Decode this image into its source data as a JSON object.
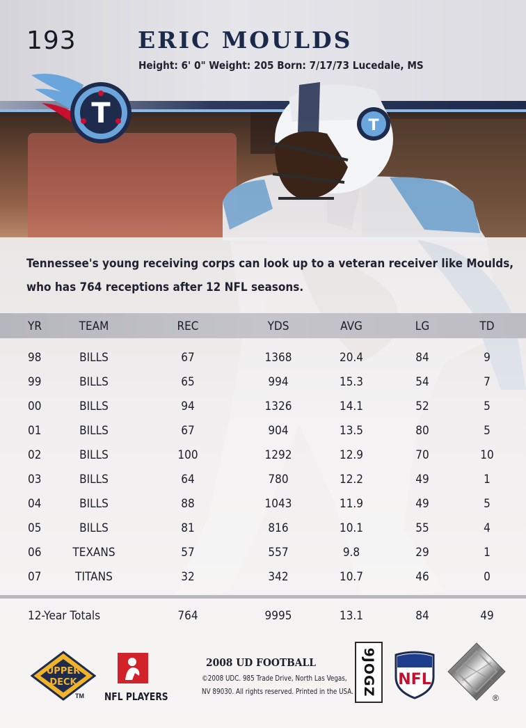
{
  "card": {
    "number": "193",
    "player_name": "ERIC MOULDS",
    "bio": "Height: 6' 0\" Weight: 205  Born: 7/17/73 Lucedale, MS",
    "blurb_line1": "Tennessee's young receiving corps can look up to a veteran receiver like Moulds,",
    "blurb_line2": "who has 764 receptions after 12 NFL seasons."
  },
  "stats": {
    "headers": {
      "yr": "YR",
      "team": "TEAM",
      "rec": "REC",
      "yds": "YDS",
      "avg": "AVG",
      "lg": "LG",
      "td": "TD"
    },
    "rows": [
      {
        "yr": "98",
        "team": "BILLS",
        "rec": "67",
        "yds": "1368",
        "avg": "20.4",
        "lg": "84",
        "td": "9"
      },
      {
        "yr": "99",
        "team": "BILLS",
        "rec": "65",
        "yds": "994",
        "avg": "15.3",
        "lg": "54",
        "td": "7"
      },
      {
        "yr": "00",
        "team": "BILLS",
        "rec": "94",
        "yds": "1326",
        "avg": "14.1",
        "lg": "52",
        "td": "5"
      },
      {
        "yr": "01",
        "team": "BILLS",
        "rec": "67",
        "yds": "904",
        "avg": "13.5",
        "lg": "80",
        "td": "5"
      },
      {
        "yr": "02",
        "team": "BILLS",
        "rec": "100",
        "yds": "1292",
        "avg": "12.9",
        "lg": "70",
        "td": "10"
      },
      {
        "yr": "03",
        "team": "BILLS",
        "rec": "64",
        "yds": "780",
        "avg": "12.2",
        "lg": "49",
        "td": "1"
      },
      {
        "yr": "04",
        "team": "BILLS",
        "rec": "88",
        "yds": "1043",
        "avg": "11.9",
        "lg": "49",
        "td": "5"
      },
      {
        "yr": "05",
        "team": "BILLS",
        "rec": "81",
        "yds": "816",
        "avg": "10.1",
        "lg": "55",
        "td": "4"
      },
      {
        "yr": "06",
        "team": "TEXANS",
        "rec": "57",
        "yds": "557",
        "avg": "9.8",
        "lg": "29",
        "td": "1"
      },
      {
        "yr": "07",
        "team": "TITANS",
        "rec": "32",
        "yds": "342",
        "avg": "10.7",
        "lg": "46",
        "td": "0"
      }
    ],
    "totals": {
      "label": "12-Year Totals",
      "rec": "764",
      "yds": "9995",
      "avg": "13.1",
      "lg": "84",
      "td": "49"
    }
  },
  "footer": {
    "set_title": "2008 UD FOOTBALL",
    "legal_line1": "©2008 UDC. 985 Trade Drive, North Las Vegas,",
    "legal_line2": "NV 89030. All rights reserved. Printed in the USA.",
    "code": "9JOGZ",
    "brand_line1": "UPPER",
    "brand_line2": "DECK",
    "tm": "TM",
    "nfl_players": "NFL PLAYERS",
    "nfl_shield_text": "NFL",
    "reg": "®"
  },
  "colors": {
    "navy": "#1e2b4d",
    "titans_blue": "#6aa6dc",
    "titans_red": "#c8102e",
    "ud_gold": "#f0b32a"
  }
}
